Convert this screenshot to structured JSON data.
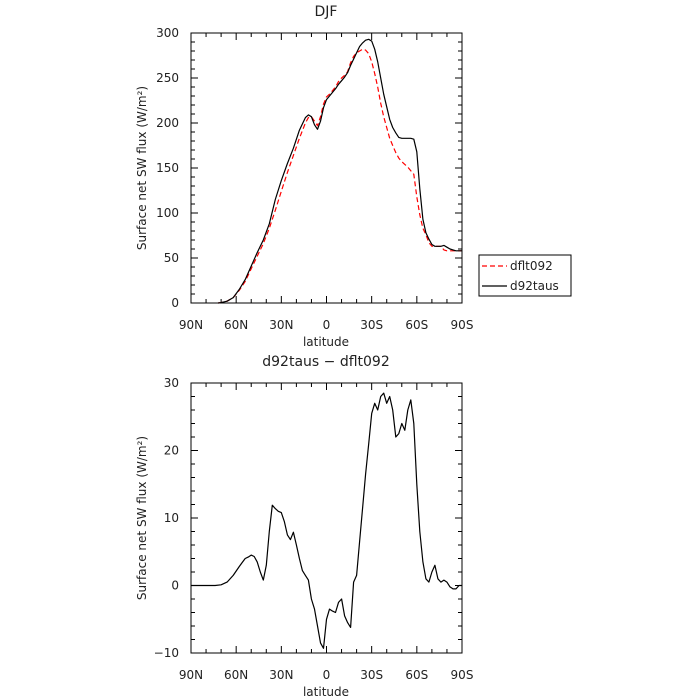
{
  "chart_data": [
    {
      "type": "line",
      "title": "DJF",
      "xlabel": "latitude",
      "ylabel": "Surface net SW flux (W/m²)",
      "xlim": [
        90,
        -90
      ],
      "ylim": [
        0,
        300
      ],
      "x_ticks": [
        "90N",
        "60N",
        "30N",
        "0",
        "30S",
        "60S",
        "90S"
      ],
      "y_ticks": [
        "0",
        "50",
        "100",
        "150",
        "200",
        "250",
        "300"
      ],
      "legend_position": "right",
      "legend": [
        "dflt092",
        "d92taus"
      ],
      "series": [
        {
          "name": "dflt092",
          "color": "#ff0000",
          "dashed": true,
          "x": [
            72,
            70,
            66,
            62,
            58,
            54,
            50,
            46,
            42,
            38,
            34,
            30,
            26,
            22,
            18,
            14,
            12,
            10,
            8,
            6,
            4,
            2,
            0,
            -2,
            -4,
            -6,
            -8,
            -10,
            -12,
            -14,
            -16,
            -18,
            -20,
            -22,
            -24,
            -26,
            -28,
            -30,
            -32,
            -34,
            -36,
            -38,
            -40,
            -42,
            -44,
            -46,
            -48,
            -50,
            -52,
            -54,
            -56,
            -58,
            -60,
            -62,
            -64,
            -66,
            -68,
            -70,
            -72,
            -74,
            -76,
            -78,
            -80,
            -82,
            -84,
            -86,
            -88,
            -90
          ],
          "y": [
            0,
            0.5,
            2,
            6,
            14,
            24,
            38,
            52,
            66,
            83,
            103,
            124,
            145,
            164,
            183,
            200,
            206,
            207,
            202,
            197,
            207,
            221,
            229,
            232,
            236,
            240,
            246,
            250,
            253,
            257,
            267,
            274,
            278,
            280,
            282,
            281,
            277,
            268,
            255,
            240,
            222,
            207,
            195,
            183,
            175,
            167,
            161,
            157,
            154,
            151,
            147,
            143,
            118,
            98,
            83,
            76,
            67,
            63,
            63,
            63,
            63,
            59,
            58,
            58,
            58,
            58,
            58,
            58
          ]
        },
        {
          "name": "d92taus",
          "color": "#000000",
          "dashed": false,
          "x": [
            72,
            70,
            66,
            62,
            58,
            54,
            50,
            46,
            42,
            38,
            34,
            30,
            26,
            22,
            18,
            14,
            12,
            10,
            8,
            6,
            4,
            2,
            0,
            -2,
            -4,
            -6,
            -8,
            -10,
            -12,
            -14,
            -16,
            -18,
            -20,
            -22,
            -24,
            -26,
            -28,
            -30,
            -32,
            -34,
            -36,
            -38,
            -40,
            -42,
            -44,
            -46,
            -48,
            -50,
            -52,
            -54,
            -56,
            -58,
            -60,
            -62,
            -64,
            -66,
            -68,
            -70,
            -72,
            -74,
            -76,
            -78,
            -80,
            -82,
            -84,
            -86,
            -88,
            -90
          ],
          "y": [
            0,
            0.5,
            2,
            6,
            15,
            26,
            41,
            56,
            70,
            88,
            115,
            136,
            155,
            172,
            192,
            206,
            209,
            207,
            198,
            193,
            202,
            217,
            226,
            230,
            234,
            238,
            243,
            247,
            251,
            256,
            264,
            271,
            278,
            285,
            289,
            292,
            293,
            291,
            282,
            268,
            250,
            232,
            218,
            204,
            195,
            189,
            184,
            183,
            183,
            183,
            183,
            182,
            168,
            127,
            93,
            78,
            71,
            65,
            63,
            63,
            63,
            64,
            62,
            60,
            59,
            58,
            58,
            58
          ]
        }
      ]
    },
    {
      "type": "line",
      "title": "d92taus − dflt092",
      "xlabel": "latitude",
      "ylabel": "Surface net SW flux (W/m²)",
      "xlim": [
        90,
        -90
      ],
      "ylim": [
        -10,
        30
      ],
      "x_ticks": [
        "90N",
        "60N",
        "30N",
        "0",
        "30S",
        "60S",
        "90S"
      ],
      "y_ticks": [
        "−10",
        "0",
        "10",
        "20",
        "30"
      ],
      "series": [
        {
          "color": "#000000",
          "x": [
            90,
            82,
            74,
            70,
            66,
            62,
            58,
            56,
            54,
            52,
            50,
            48,
            46,
            44,
            42,
            40,
            38,
            36,
            34,
            32,
            30,
            28,
            26,
            24,
            22,
            20,
            18,
            16,
            14,
            12,
            10,
            8,
            6,
            4,
            2,
            0,
            -2,
            -4,
            -6,
            -8,
            -10,
            -12,
            -14,
            -16,
            -18,
            -20,
            -22,
            -24,
            -26,
            -28,
            -30,
            -32,
            -34,
            -36,
            -38,
            -40,
            -42,
            -44,
            -46,
            -48,
            -50,
            -52,
            -54,
            -56,
            -58,
            -60,
            -62,
            -64,
            -66,
            -68,
            -70,
            -72,
            -74,
            -76,
            -78,
            -80,
            -82,
            -84,
            -86,
            -88,
            -90
          ],
          "y": [
            0,
            0,
            0,
            0.1,
            0.5,
            1.5,
            2.8,
            3.4,
            4.0,
            4.2,
            4.5,
            4.3,
            3.5,
            2.0,
            0.8,
            3.0,
            8.0,
            11.9,
            11.4,
            11.0,
            10.8,
            9.5,
            7.5,
            6.8,
            7.9,
            6.0,
            4.0,
            2.2,
            1.5,
            0.8,
            -2.0,
            -3.5,
            -6.0,
            -8.5,
            -9.3,
            -5.0,
            -3.5,
            -3.8,
            -4.0,
            -2.5,
            -2.0,
            -4.5,
            -5.5,
            -6.2,
            0.5,
            1.5,
            6.5,
            11.5,
            16.5,
            21.0,
            25.5,
            27.0,
            26.0,
            28.0,
            28.5,
            27.0,
            28.0,
            26.0,
            22.0,
            22.5,
            24.0,
            23.0,
            26.0,
            27.5,
            24.0,
            15.0,
            8.0,
            3.5,
            1.0,
            0.5,
            2.0,
            3.0,
            1.0,
            0.5,
            0.8,
            0.5,
            -0.2,
            -0.5,
            -0.5,
            0,
            0
          ]
        }
      ]
    }
  ]
}
